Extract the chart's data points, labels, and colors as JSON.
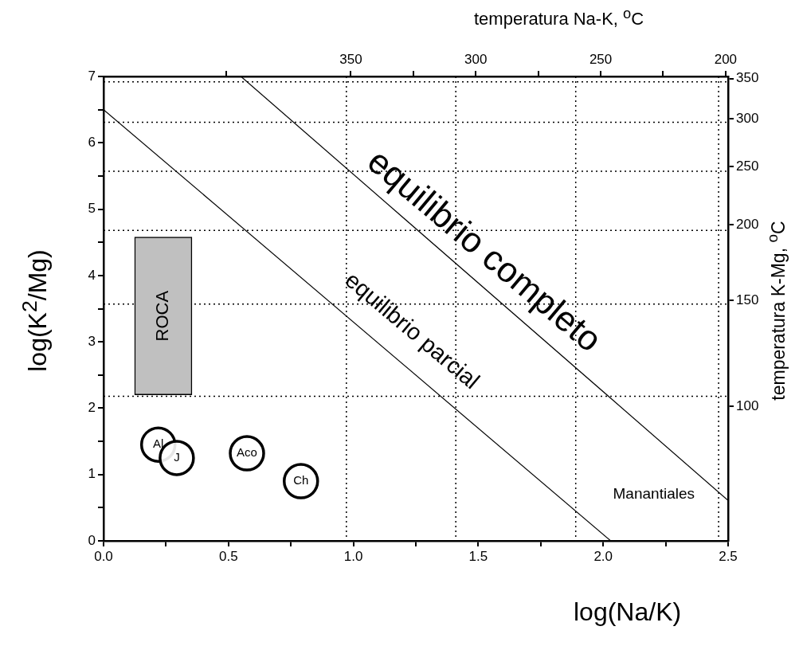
{
  "chart_data": {
    "type": "scatter",
    "xlabel": "log(Na/K)",
    "ylabel": "log(K$^{2}$/Mg)",
    "x2label": "temperatura Na-K,  $^{o}$C",
    "y2label": "temperatura K-Mg, $^{o}$C",
    "xlim": [
      0,
      2.5
    ],
    "xticks": [
      {
        "value": 0,
        "label": "0.0"
      },
      {
        "value": 0.25,
        "label": null
      },
      {
        "value": 0.5,
        "label": "0.5"
      },
      {
        "value": 0.75,
        "label": null
      },
      {
        "value": 1,
        "label": "1.0"
      },
      {
        "value": 1.25,
        "label": null
      },
      {
        "value": 1.5,
        "label": "1.5"
      },
      {
        "value": 1.75,
        "label": null
      },
      {
        "value": 2,
        "label": "2.0"
      },
      {
        "value": 2.25,
        "label": null
      },
      {
        "value": 2.5,
        "label": "2.5"
      }
    ],
    "ylim": [
      0,
      7
    ],
    "yticks": [
      0,
      {
        "value": 0.5,
        "label": null
      },
      1,
      {
        "value": 1.5,
        "label": null
      },
      2,
      {
        "value": 2.5,
        "label": null
      },
      3,
      {
        "value": 3.5,
        "label": null
      },
      4,
      {
        "value": 4.5,
        "label": null
      },
      5,
      {
        "value": 5.5,
        "label": null
      },
      6,
      {
        "value": 6.5,
        "label": null
      },
      7
    ],
    "x2lim": [
      449,
      199
    ],
    "x2ticks": [
      {
        "value": 400,
        "label": null
      },
      350,
      {
        "value": 325,
        "label": null
      },
      300,
      {
        "value": 275,
        "label": null
      },
      250,
      {
        "value": 225,
        "label": null
      },
      200
    ],
    "y2lim": [
      59.8,
      352.7
    ],
    "y2ticks": [
      350,
      300,
      250,
      200,
      150,
      100
    ],
    "log": "y2",
    "series": [
      {
        "type": "line",
        "color": "#000000",
        "x": [
          0,
          2.03
        ],
        "values": [
          6.5,
          0
        ]
      },
      {
        "type": "line",
        "color": "#000000",
        "x": [
          0.55,
          2.5
        ],
        "values": [
          7,
          0.61
        ]
      },
      {
        "type": "bar",
        "name": "ROCA",
        "color": "#c0c0c0",
        "x": [
          0.239
        ],
        "base": [
          2.2
        ],
        "values": [
          2.38
        ]
      },
      {
        "name": "Manantiales",
        "color": "#000000",
        "marker": "circle",
        "x": [
          0.219,
          0.293,
          0.574,
          0.79
        ],
        "values": [
          1.45,
          1.25,
          1.32,
          0.9
        ]
      }
    ],
    "annotations": [
      "equilibrio completo",
      "equilibrio parcial",
      {
        "text": "Al",
        "x": 0.219,
        "y": 1.45
      },
      {
        "text": "J",
        "x": 0.293,
        "y": 1.25
      },
      {
        "text": "Aco",
        "x": 0.574,
        "y": 1.32
      },
      {
        "text": "Ch",
        "x": 0.79,
        "y": 0.9
      }
    ],
    "ref_lines": [
      {
        "axis": "x",
        "value": 0.972,
        "line_style": "dotted"
      },
      {
        "axis": "x",
        "value": 1.41,
        "line_style": "dotted"
      },
      {
        "axis": "x",
        "value": 1.89,
        "line_style": "dotted"
      },
      {
        "axis": "x",
        "value": 2.462,
        "line_style": "dotted"
      },
      {
        "axis": "y",
        "value": 6.92,
        "line_style": "dotted"
      },
      {
        "axis": "y",
        "value": 6.31,
        "line_style": "dotted"
      },
      {
        "axis": "y",
        "value": 5.57,
        "line_style": "dotted"
      },
      {
        "axis": "y",
        "value": 4.68,
        "line_style": "dotted"
      },
      {
        "axis": "y",
        "value": 3.57,
        "line_style": "dotted"
      },
      {
        "axis": "y",
        "value": 2.18,
        "line_style": "dotted"
      }
    ]
  }
}
